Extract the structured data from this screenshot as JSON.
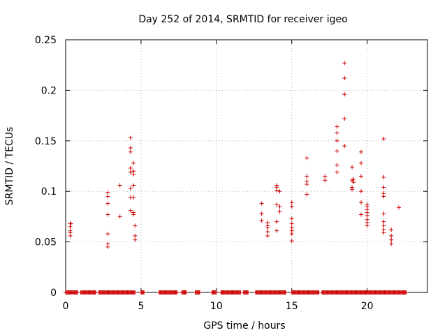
{
  "chart_data": {
    "type": "scatter",
    "title": "Day 252 of 2014, SRMTID for receiver igeo",
    "xlabel": "GPS time / hours",
    "ylabel": "SRMTID / TECUs",
    "xlim": [
      0,
      24
    ],
    "ylim": [
      0,
      0.25
    ],
    "xticks": [
      0,
      5,
      10,
      15,
      20
    ],
    "xtick_labels": [
      "0",
      "5",
      "10",
      "15",
      "20"
    ],
    "yticks": [
      0,
      0.05,
      0.1,
      0.15,
      0.2,
      0.25
    ],
    "ytick_labels": [
      "0",
      "0.05",
      "0.1",
      "0.15",
      "0.2",
      "0.25"
    ],
    "grid": true,
    "marker": "+",
    "color": "#cc0000",
    "series": [
      {
        "name": "SRMTID",
        "points": [
          [
            0.3,
            0.068
          ],
          [
            0.3,
            0.065
          ],
          [
            0.3,
            0.061
          ],
          [
            0.3,
            0.059
          ],
          [
            0.3,
            0.056
          ],
          [
            0.35,
            0.068
          ],
          [
            2.8,
            0.099
          ],
          [
            2.8,
            0.095
          ],
          [
            2.8,
            0.088
          ],
          [
            2.8,
            0.077
          ],
          [
            2.8,
            0.058
          ],
          [
            2.8,
            0.048
          ],
          [
            2.8,
            0.045
          ],
          [
            3.6,
            0.106
          ],
          [
            3.6,
            0.075
          ],
          [
            4.3,
            0.153
          ],
          [
            4.3,
            0.143
          ],
          [
            4.3,
            0.139
          ],
          [
            4.3,
            0.123
          ],
          [
            4.3,
            0.119
          ],
          [
            4.3,
            0.103
          ],
          [
            4.3,
            0.094
          ],
          [
            4.3,
            0.081
          ],
          [
            4.5,
            0.128
          ],
          [
            4.5,
            0.12
          ],
          [
            4.5,
            0.117
          ],
          [
            4.5,
            0.106
          ],
          [
            4.5,
            0.094
          ],
          [
            4.5,
            0.079
          ],
          [
            4.5,
            0.077
          ],
          [
            4.6,
            0.066
          ],
          [
            4.6,
            0.056
          ],
          [
            4.6,
            0.052
          ],
          [
            13.0,
            0.088
          ],
          [
            13.0,
            0.078
          ],
          [
            13.0,
            0.071
          ],
          [
            13.4,
            0.069
          ],
          [
            13.4,
            0.066
          ],
          [
            13.4,
            0.064
          ],
          [
            13.4,
            0.06
          ],
          [
            13.4,
            0.056
          ],
          [
            14.0,
            0.106
          ],
          [
            14.0,
            0.104
          ],
          [
            14.0,
            0.101
          ],
          [
            14.0,
            0.087
          ],
          [
            14.0,
            0.07
          ],
          [
            14.0,
            0.061
          ],
          [
            14.2,
            0.1
          ],
          [
            14.2,
            0.085
          ],
          [
            14.2,
            0.08
          ],
          [
            15.0,
            0.089
          ],
          [
            15.0,
            0.085
          ],
          [
            15.0,
            0.073
          ],
          [
            15.0,
            0.068
          ],
          [
            15.0,
            0.064
          ],
          [
            15.0,
            0.061
          ],
          [
            15.0,
            0.058
          ],
          [
            15.0,
            0.051
          ],
          [
            16.0,
            0.133
          ],
          [
            16.0,
            0.115
          ],
          [
            16.0,
            0.11
          ],
          [
            16.0,
            0.107
          ],
          [
            16.0,
            0.097
          ],
          [
            17.2,
            0.115
          ],
          [
            17.2,
            0.111
          ],
          [
            18.0,
            0.164
          ],
          [
            18.0,
            0.158
          ],
          [
            18.0,
            0.15
          ],
          [
            18.0,
            0.14
          ],
          [
            18.0,
            0.126
          ],
          [
            18.0,
            0.119
          ],
          [
            18.5,
            0.227
          ],
          [
            18.5,
            0.212
          ],
          [
            18.5,
            0.196
          ],
          [
            18.5,
            0.172
          ],
          [
            18.5,
            0.145
          ],
          [
            19.0,
            0.124
          ],
          [
            19.0,
            0.111
          ],
          [
            19.0,
            0.104
          ],
          [
            19.0,
            0.102
          ],
          [
            19.1,
            0.112
          ],
          [
            19.1,
            0.109
          ],
          [
            19.6,
            0.139
          ],
          [
            19.6,
            0.128
          ],
          [
            19.6,
            0.115
          ],
          [
            19.6,
            0.1
          ],
          [
            19.6,
            0.089
          ],
          [
            19.6,
            0.077
          ],
          [
            20.0,
            0.087
          ],
          [
            20.0,
            0.085
          ],
          [
            20.0,
            0.082
          ],
          [
            20.0,
            0.079
          ],
          [
            20.0,
            0.076
          ],
          [
            20.0,
            0.072
          ],
          [
            20.0,
            0.069
          ],
          [
            20.0,
            0.066
          ],
          [
            21.1,
            0.152
          ],
          [
            21.1,
            0.114
          ],
          [
            21.1,
            0.104
          ],
          [
            21.1,
            0.098
          ],
          [
            21.1,
            0.095
          ],
          [
            21.1,
            0.078
          ],
          [
            21.1,
            0.07
          ],
          [
            21.1,
            0.066
          ],
          [
            21.1,
            0.062
          ],
          [
            21.1,
            0.059
          ],
          [
            21.6,
            0.062
          ],
          [
            21.6,
            0.056
          ],
          [
            21.6,
            0.052
          ],
          [
            21.6,
            0.048
          ],
          [
            22.1,
            0.084
          ]
        ],
        "zero_ranges": [
          [
            0.0,
            0.8
          ],
          [
            1.0,
            2.0
          ],
          [
            2.2,
            4.6
          ],
          [
            5.0,
            5.2
          ],
          [
            6.2,
            7.4
          ],
          [
            7.7,
            8.0
          ],
          [
            8.6,
            8.9
          ],
          [
            9.7,
            10.0
          ],
          [
            10.3,
            11.6
          ],
          [
            11.8,
            12.1
          ],
          [
            12.6,
            14.6
          ],
          [
            15.0,
            16.8
          ],
          [
            17.0,
            22.6
          ]
        ]
      }
    ]
  }
}
